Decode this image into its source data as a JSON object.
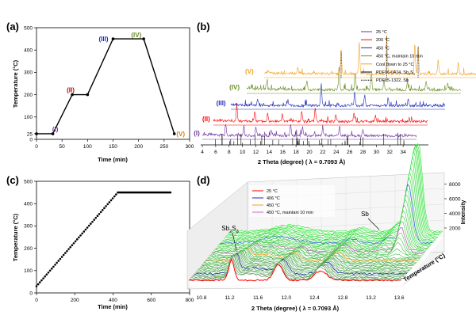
{
  "chart_data": [
    {
      "panel": "(a)",
      "type": "line",
      "xlabel": "Time (min)",
      "ylabel": "Temperature (°C)",
      "xlim": [
        0,
        300
      ],
      "ylim": [
        0,
        500
      ],
      "xticks": [
        "0",
        "50",
        "100",
        "150",
        "200",
        "250",
        "300"
      ],
      "yticks": [
        "0",
        "100",
        "200",
        "300",
        "400",
        "500"
      ],
      "extra_ytick": "25",
      "x": [
        0,
        32,
        70,
        100,
        150,
        210,
        270
      ],
      "y": [
        25,
        25,
        200,
        200,
        450,
        450,
        25
      ],
      "stages": [
        {
          "label": "(I)",
          "x": 15,
          "y": 25,
          "color": "#7030A0"
        },
        {
          "label": "(II)",
          "x": 70,
          "y": 200,
          "color": "#C00000"
        },
        {
          "label": "(III)",
          "x": 150,
          "y": 450,
          "color": "#1F2BB8"
        },
        {
          "label": "(IV)",
          "x": 180,
          "y": 450,
          "color": "#6B8E23"
        },
        {
          "label": "(V)",
          "x": 270,
          "y": 25,
          "color": "#E07B00"
        }
      ]
    },
    {
      "panel": "(b)",
      "type": "line",
      "xlabel": "2 Theta (degree) ( λ = 0.7093 Å)",
      "xticks": [
        "4",
        "6",
        "8",
        "10",
        "12",
        "14",
        "16",
        "18",
        "20",
        "22",
        "24",
        "26",
        "28",
        "30",
        "32",
        "34",
        "36"
      ],
      "legend": [
        {
          "label": "25 °C",
          "color": "#7030A0",
          "style": "solid"
        },
        {
          "label": "200 °C",
          "color": "#FF0000",
          "style": "solid"
        },
        {
          "label": "450 °C",
          "color": "#1F2BB8",
          "style": "solid"
        },
        {
          "label": "450 °C, maintain 10 min",
          "color": "#6B8E23",
          "style": "solid"
        },
        {
          "label": "Cool down to 25 °C",
          "color": "#F4A020",
          "style": "solid"
        },
        {
          "label": "PDF06-0474, Sb",
          "sub": "2",
          "label2": "S",
          "sub2": "3",
          "color": "#000000",
          "style": "solid"
        },
        {
          "label": "PDF85-1322, Sb",
          "color": "#000000",
          "style": "dotted"
        }
      ],
      "series": [
        {
          "name": "(I)",
          "color": "#7030A0"
        },
        {
          "name": "(II)",
          "color": "#FF0000"
        },
        {
          "name": "(III)",
          "color": "#1F2BB8"
        },
        {
          "name": "(IV)",
          "color": "#6B8E23"
        },
        {
          "name": "(V)",
          "color": "#F4A020"
        }
      ]
    },
    {
      "panel": "(c)",
      "type": "scatter",
      "xlabel": "Time (min)",
      "ylabel": "Temperature (°C)",
      "xlim": [
        0,
        800
      ],
      "ylim": [
        0,
        500
      ],
      "xticks": [
        "0",
        "200",
        "400",
        "600",
        "800"
      ],
      "yticks": [
        "0",
        "100",
        "200",
        "300",
        "400",
        "500"
      ],
      "ramp_start": [
        0,
        30
      ],
      "ramp_end": [
        425,
        450
      ],
      "hold_end": [
        700,
        450
      ]
    },
    {
      "panel": "(d)",
      "type": "area",
      "xlabel": "2 Theta (degree) ( λ = 0.7093 Å)",
      "zlabel": "Intensity",
      "ylabel": "Temperature (°C)",
      "xticks": [
        "10.8",
        "11.2",
        "11.6",
        "12.0",
        "12.4",
        "12.8",
        "13.2",
        "13.6"
      ],
      "zticks": [
        "2000",
        "4000",
        "6000",
        "8000"
      ],
      "legend": [
        {
          "label": "25 °C",
          "color": "#FF0000"
        },
        {
          "label": "406 °C",
          "color": "#1F2BB8"
        },
        {
          "label": "450 °C",
          "color": "#F4A020"
        },
        {
          "label": "450 °C, maintain 10 min",
          "color": "#CC66CC"
        }
      ],
      "annotations": [
        {
          "label": "Sb",
          "sub": "2",
          "label2": "S",
          "sub2": "3"
        },
        {
          "label": "Sb"
        }
      ]
    }
  ]
}
